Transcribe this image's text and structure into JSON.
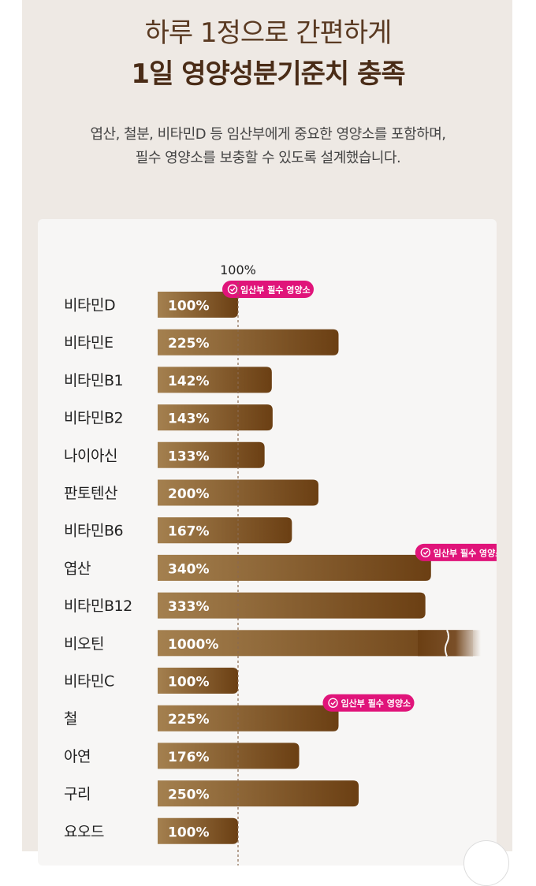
{
  "header": {
    "title_line1": "하루 1정으로 간편하게",
    "title_line2": "1일 영양성분기준치 충족",
    "desc_line1": "엽산, 철분, 비타민D 등 임산부에게 중요한 영양소를 포함하며,",
    "desc_line2": "필수 영양소를 보충할 수 있도록 설계했습니다."
  },
  "chart_data": {
    "type": "bar",
    "orientation": "horizontal",
    "reference_label": "100%",
    "reference_value": 100,
    "badge_text": "임산부 필수 영양소",
    "badge_icon": "check-circle-icon",
    "categories": [
      "비타민D",
      "비타민E",
      "비타민B1",
      "비타민B2",
      "나이아신",
      "판토텐산",
      "비타민B6",
      "엽산",
      "비타민B12",
      "비오틴",
      "비타민C",
      "철",
      "아연",
      "구리",
      "요오드"
    ],
    "values": [
      100,
      225,
      142,
      143,
      133,
      200,
      167,
      340,
      333,
      1000,
      100,
      225,
      176,
      250,
      100
    ],
    "value_labels": [
      "100%",
      "225%",
      "142%",
      "143%",
      "133%",
      "200%",
      "167%",
      "340%",
      "333%",
      "1000%",
      "100%",
      "225%",
      "176%",
      "250%",
      "100%"
    ],
    "badged": [
      "비타민D",
      "엽산",
      "철"
    ],
    "broken_axis_bar": "비오틴",
    "colors": {
      "bar_start": "#a4804f",
      "bar_end": "#6b3f13",
      "badge": "#e0147a",
      "reference_line": "#8a6a4f"
    }
  },
  "icons": {
    "scroll_button": "scroll-top-button"
  }
}
